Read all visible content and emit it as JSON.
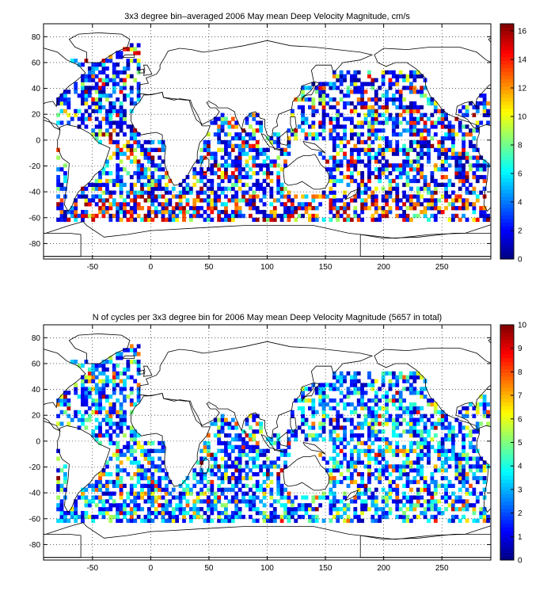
{
  "figure": {
    "background": "#ffffff"
  },
  "chart_data": [
    {
      "type": "heatmap",
      "title": "3x3 degree bin–averaged 2006 May mean Deep Velocity Magnitude, cm/s",
      "xlabel": "",
      "ylabel": "",
      "xlim": [
        -92,
        292
      ],
      "ylim": [
        -92,
        90
      ],
      "x_ticks": [
        -50,
        0,
        50,
        100,
        150,
        200,
        250
      ],
      "y_ticks": [
        -80,
        -60,
        -40,
        -20,
        0,
        20,
        40,
        60,
        80
      ],
      "grid": "dotted",
      "bin_size_deg": 3,
      "colorbar": {
        "min": 0,
        "max": 16.5,
        "ticks": [
          0,
          2,
          4,
          6,
          8,
          10,
          12,
          14,
          16
        ],
        "colormap": "jet"
      }
    },
    {
      "type": "heatmap",
      "title": "N of cycles per 3x3 degree bin for 2006 May mean Deep Velocity Magnitude (5657 in total)",
      "xlabel": "",
      "ylabel": "",
      "xlim": [
        -92,
        292
      ],
      "ylim": [
        -92,
        90
      ],
      "x_ticks": [
        -50,
        0,
        50,
        100,
        150,
        200,
        250
      ],
      "y_ticks": [
        -80,
        -60,
        -40,
        -20,
        0,
        20,
        40,
        60,
        80
      ],
      "grid": "dotted",
      "bin_size_deg": 3,
      "total_cycles": 5657,
      "colorbar": {
        "min": 0,
        "max": 10,
        "ticks": [
          0,
          1,
          2,
          3,
          4,
          5,
          6,
          7,
          8,
          9,
          10
        ],
        "colormap": "jet"
      }
    }
  ]
}
